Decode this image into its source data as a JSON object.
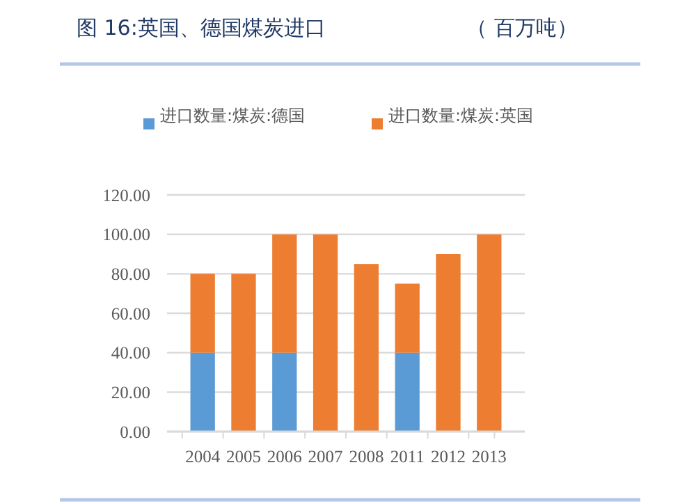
{
  "chart_data": {
    "type": "bar",
    "title": "图 16:英国、德国煤炭进口",
    "subtitle": "（ 百万吨）",
    "stacked": true,
    "categories": [
      "2004",
      "2005",
      "2006",
      "2007",
      "2008",
      "2011",
      "2012",
      "2013"
    ],
    "series": [
      {
        "name": "进口数量:煤炭:德国",
        "color": "#5b9bd5",
        "values": [
          40,
          0,
          40,
          0,
          0,
          40,
          0,
          0
        ]
      },
      {
        "name": "进口数量:煤炭:英国",
        "color": "#ed7d31",
        "values": [
          40,
          80,
          60,
          100,
          85,
          35,
          90,
          100
        ]
      }
    ],
    "ylim": [
      0,
      120
    ],
    "yticks": [
      {
        "value": 0,
        "label": "0.00"
      },
      {
        "value": 20,
        "label": "20.00"
      },
      {
        "value": 40,
        "label": "40.00"
      },
      {
        "value": 60,
        "label": "60.00"
      },
      {
        "value": 80,
        "label": "80.00"
      },
      {
        "value": 100,
        "label": "100.00"
      },
      {
        "value": 120,
        "label": "120.00"
      }
    ],
    "grid": "y",
    "legend": "top"
  }
}
